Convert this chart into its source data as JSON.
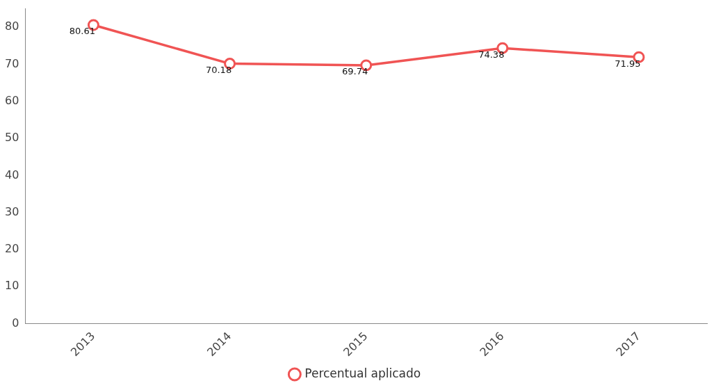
{
  "chart_data": {
    "type": "line",
    "categories": [
      "2013",
      "2014",
      "2015",
      "2016",
      "2017"
    ],
    "series": [
      {
        "name": "Percentual aplicado",
        "color": "#f05454",
        "values": [
          80.61,
          70.18,
          69.74,
          74.38,
          71.95
        ]
      }
    ],
    "ylim": [
      0,
      85
    ],
    "yticks": [
      0,
      10,
      20,
      30,
      40,
      50,
      60,
      70,
      80
    ],
    "grid": false,
    "legend": "bottom",
    "marker": "circle",
    "line_style": "solid",
    "data_labels": true
  }
}
